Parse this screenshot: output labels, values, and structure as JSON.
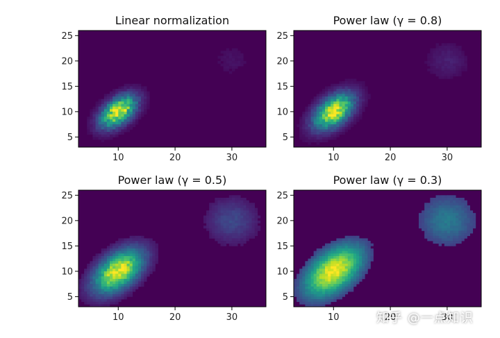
{
  "chart_data": [
    {
      "type": "heatmap",
      "title": "Linear normalization",
      "xlabel": "",
      "ylabel": "",
      "xlim": [
        3,
        36
      ],
      "ylim": [
        3,
        26
      ],
      "xticks": [
        "10",
        "20",
        "30"
      ],
      "yticks": [
        "5",
        "10",
        "15",
        "20",
        "25"
      ],
      "colormap": "viridis",
      "gamma": 1.0,
      "clusters": [
        {
          "name": "",
          "center_x": 10,
          "center_y": 10,
          "sigma_major": 2.6,
          "sigma_minor": 1.5,
          "angle_deg": 45,
          "peak": 1.0
        },
        {
          "name": "",
          "center_x": 30,
          "center_y": 20,
          "sigma_major": 2.2,
          "sigma_minor": 2.2,
          "angle_deg": 0,
          "peak": 0.05
        }
      ]
    },
    {
      "type": "heatmap",
      "title": "Power law (γ = 0.8)",
      "xlabel": "",
      "ylabel": "",
      "xlim": [
        3,
        36
      ],
      "ylim": [
        3,
        26
      ],
      "xticks": [
        "10",
        "20",
        "30"
      ],
      "yticks": [
        "5",
        "10",
        "15",
        "20",
        "25"
      ],
      "colormap": "viridis",
      "gamma": 0.8,
      "clusters": [
        {
          "name": "",
          "center_x": 10,
          "center_y": 10,
          "sigma_major": 2.6,
          "sigma_minor": 1.5,
          "angle_deg": 45,
          "peak": 1.0
        },
        {
          "name": "",
          "center_x": 30,
          "center_y": 20,
          "sigma_major": 2.2,
          "sigma_minor": 2.2,
          "angle_deg": 0,
          "peak": 0.05
        }
      ]
    },
    {
      "type": "heatmap",
      "title": "Power law (γ = 0.5)",
      "xlabel": "",
      "ylabel": "",
      "xlim": [
        3,
        36
      ],
      "ylim": [
        3,
        26
      ],
      "xticks": [
        "10",
        "20",
        "30"
      ],
      "yticks": [
        "5",
        "10",
        "15",
        "20",
        "25"
      ],
      "colormap": "viridis",
      "gamma": 0.5,
      "clusters": [
        {
          "name": "",
          "center_x": 10,
          "center_y": 10,
          "sigma_major": 2.6,
          "sigma_minor": 1.5,
          "angle_deg": 45,
          "peak": 1.0
        },
        {
          "name": "",
          "center_x": 30,
          "center_y": 20,
          "sigma_major": 2.2,
          "sigma_minor": 2.2,
          "angle_deg": 0,
          "peak": 0.05
        }
      ]
    },
    {
      "type": "heatmap",
      "title": "Power law (γ = 0.3)",
      "xlabel": "",
      "ylabel": "",
      "xlim": [
        3,
        36
      ],
      "ylim": [
        3,
        26
      ],
      "xticks": [
        "10",
        "20",
        "30"
      ],
      "yticks": [
        "5",
        "10",
        "15",
        "20",
        "25"
      ],
      "colormap": "viridis",
      "gamma": 0.3,
      "clusters": [
        {
          "name": "",
          "center_x": 10,
          "center_y": 10,
          "sigma_major": 2.6,
          "sigma_minor": 1.5,
          "angle_deg": 45,
          "peak": 1.0
        },
        {
          "name": "",
          "center_x": 30,
          "center_y": 20,
          "sigma_major": 2.2,
          "sigma_minor": 2.2,
          "angle_deg": 0,
          "peak": 0.05
        }
      ]
    }
  ],
  "watermark": {
    "text": "知乎 @一点知识"
  }
}
